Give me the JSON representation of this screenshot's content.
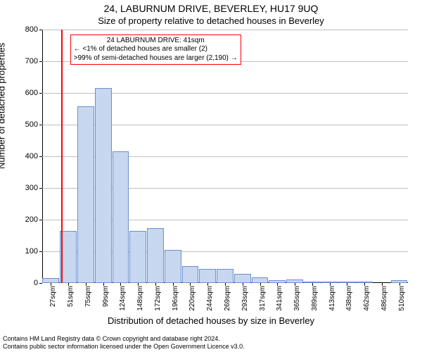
{
  "title": "24, LABURNUM DRIVE, BEVERLEY, HU17 9UQ",
  "subtitle": "Size of property relative to detached houses in Beverley",
  "y_axis_label": "Number of detached properties",
  "x_axis_label": "Distribution of detached houses by size in Beverley",
  "footer_line1": "Contains HM Land Registry data © Crown copyright and database right 2024.",
  "footer_line2": "Contains public sector information licensed under the Open Government Licence v3.0.",
  "chart": {
    "type": "histogram",
    "background_color": "#ffffff",
    "grid_color": "#bfbfbf",
    "axis_color": "#000000",
    "bar_fill": "#c7d7f0",
    "bar_border": "#6a8fcf",
    "ref_line_color": "#ff0000",
    "callout_border_color": "#ff0000",
    "ylim": [
      0,
      800
    ],
    "ytick_step": 100,
    "x_ticks": [
      "27sqm",
      "51sqm",
      "75sqm",
      "99sqm",
      "124sqm",
      "148sqm",
      "172sqm",
      "196sqm",
      "220sqm",
      "244sqm",
      "269sqm",
      "293sqm",
      "317sqm",
      "341sqm",
      "365sqm",
      "389sqm",
      "413sqm",
      "438sqm",
      "462sqm",
      "486sqm",
      "510sqm"
    ],
    "bars": [
      {
        "x_index": 0,
        "value": 15
      },
      {
        "x_index": 1,
        "value": 165
      },
      {
        "x_index": 2,
        "value": 558
      },
      {
        "x_index": 3,
        "value": 615
      },
      {
        "x_index": 4,
        "value": 415
      },
      {
        "x_index": 5,
        "value": 165
      },
      {
        "x_index": 6,
        "value": 173
      },
      {
        "x_index": 7,
        "value": 105
      },
      {
        "x_index": 8,
        "value": 53
      },
      {
        "x_index": 9,
        "value": 45
      },
      {
        "x_index": 10,
        "value": 45
      },
      {
        "x_index": 11,
        "value": 28
      },
      {
        "x_index": 12,
        "value": 18
      },
      {
        "x_index": 13,
        "value": 10
      },
      {
        "x_index": 14,
        "value": 12
      },
      {
        "x_index": 15,
        "value": 5
      },
      {
        "x_index": 16,
        "value": 3
      },
      {
        "x_index": 17,
        "value": 2
      },
      {
        "x_index": 18,
        "value": 2
      },
      {
        "x_index": 19,
        "value": 0
      },
      {
        "x_index": 20,
        "value": 10
      }
    ],
    "reference_x_index": 0.58,
    "callout": {
      "line1": "24 LABURNUM DRIVE: 41sqm",
      "line2": "← <1% of detached houses are smaller (2)",
      "line3": ">99% of semi-detached houses are larger (2,190) →",
      "left_x_index": 1.1,
      "top_value": 785
    }
  }
}
